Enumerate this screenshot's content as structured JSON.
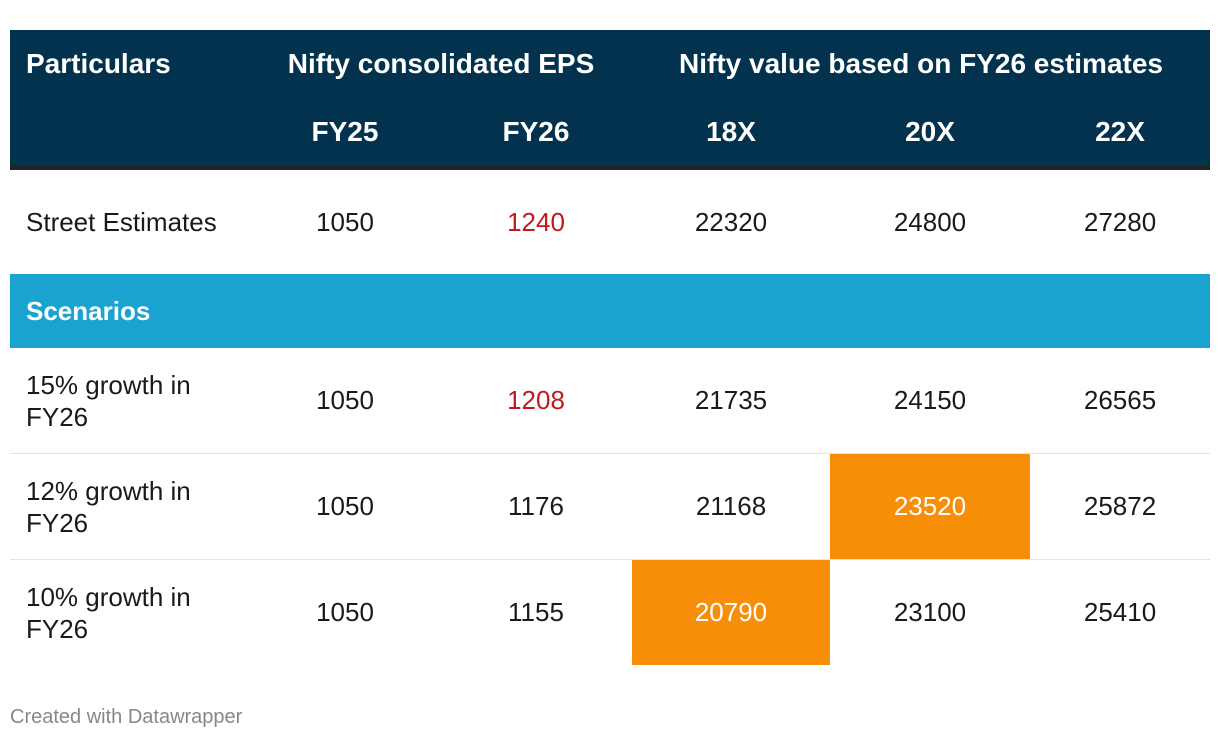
{
  "chart_data": {
    "type": "table",
    "header_groups": [
      {
        "label": "Particulars"
      },
      {
        "label": "Nifty consolidated EPS"
      },
      {
        "label": "Nifty value based on FY26 estimates"
      }
    ],
    "columns": [
      "FY25",
      "FY26",
      "18X",
      "20X",
      "22X"
    ],
    "street": {
      "label": "Street Estimates",
      "values": [
        "1050",
        "1240",
        "22320",
        "24800",
        "27280"
      ]
    },
    "section_label": "Scenarios",
    "rows": [
      {
        "label": "15% growth in FY26",
        "values": [
          "1050",
          "1208",
          "21735",
          "24150",
          "26565"
        ]
      },
      {
        "label": "12% growth in FY26",
        "values": [
          "1050",
          "1176",
          "21168",
          "23520",
          "25872"
        ]
      },
      {
        "label": "10% growth in FY26",
        "values": [
          "1050",
          "1155",
          "20790",
          "23100",
          "25410"
        ]
      }
    ],
    "colors": {
      "header_bg": "#02324d",
      "section_bg": "#1aa3d1",
      "highlight": "#f78e07",
      "red_text": "#c0191e"
    }
  },
  "footer": {
    "credit": "Created with Datawrapper"
  }
}
